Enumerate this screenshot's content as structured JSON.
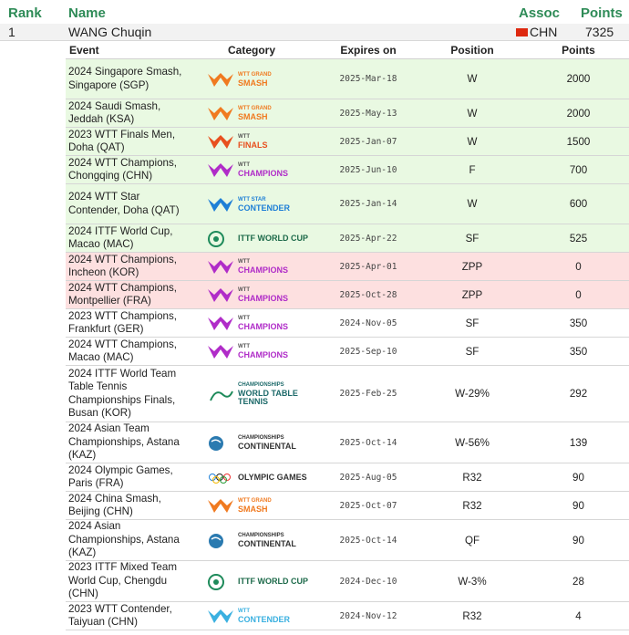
{
  "header": {
    "rank": "Rank",
    "name": "Name",
    "assoc": "Assoc",
    "points": "Points"
  },
  "player": {
    "rank": "1",
    "name": "WANG Chuqin",
    "assoc": "CHN",
    "points": "7325"
  },
  "columns": {
    "event": "Event",
    "category": "Category",
    "expires": "Expires on",
    "position": "Position",
    "points": "Points"
  },
  "colors": {
    "header_green": "#2e8b57",
    "row_green": "#e9f9e2",
    "row_red": "#fde0e0",
    "flag_red": "#de2910"
  },
  "rows": [
    {
      "event": "2024 Singapore Smash, Singapore (SGP)",
      "logo": "smash",
      "logo_icon": "wtt-smash-logo-icon",
      "logo_text": "SMASH",
      "logo_small": "WTT GRAND",
      "expires": "2025-Mar-18",
      "position": "W",
      "points": "2000",
      "status": "green"
    },
    {
      "event": "2024 Saudi Smash, Jeddah (KSA)",
      "logo": "smash",
      "logo_icon": "wtt-smash-logo-icon",
      "logo_text": "SMASH",
      "logo_small": "WTT GRAND",
      "expires": "2025-May-13",
      "position": "W",
      "points": "2000",
      "status": "green"
    },
    {
      "event": "2023 WTT Finals Men, Doha (QAT)",
      "logo": "finals",
      "logo_icon": "wtt-finals-logo-icon",
      "logo_text": "FINALS",
      "logo_small": "WTT",
      "expires": "2025-Jan-07",
      "position": "W",
      "points": "1500",
      "status": "green"
    },
    {
      "event": "2024 WTT Champions, Chongqing (CHN)",
      "logo": "champions",
      "logo_icon": "wtt-champions-logo-icon",
      "logo_text": "CHAMPIONS",
      "logo_small": "WTT",
      "expires": "2025-Jun-10",
      "position": "F",
      "points": "700",
      "status": "green"
    },
    {
      "event": "2024 WTT Star Contender, Doha (QAT)",
      "logo": "star",
      "logo_icon": "wtt-star-contender-logo-icon",
      "logo_text": "CONTENDER",
      "logo_small": "WTT STAR",
      "expires": "2025-Jan-14",
      "position": "W",
      "points": "600",
      "status": "green"
    },
    {
      "event": "2024 ITTF World Cup, Macao (MAC)",
      "logo": "worldcup",
      "logo_icon": "ittf-world-cup-logo-icon",
      "logo_text": "ITTF WORLD CUP",
      "logo_small": "",
      "expires": "2025-Apr-22",
      "position": "SF",
      "points": "525",
      "status": "green"
    },
    {
      "event": "2024 WTT Champions, Incheon (KOR)",
      "logo": "champions",
      "logo_icon": "wtt-champions-logo-icon",
      "logo_text": "CHAMPIONS",
      "logo_small": "WTT",
      "expires": "2025-Apr-01",
      "position": "ZPP",
      "points": "0",
      "status": "red"
    },
    {
      "event": "2024 WTT Champions, Montpellier (FRA)",
      "logo": "champions",
      "logo_icon": "wtt-champions-logo-icon",
      "logo_text": "CHAMPIONS",
      "logo_small": "WTT",
      "expires": "2025-Oct-28",
      "position": "ZPP",
      "points": "0",
      "status": "red"
    },
    {
      "event": "2023 WTT Champions, Frankfurt (GER)",
      "logo": "champions",
      "logo_icon": "wtt-champions-logo-icon",
      "logo_text": "CHAMPIONS",
      "logo_small": "WTT",
      "expires": "2024-Nov-05",
      "position": "SF",
      "points": "350",
      "status": "white"
    },
    {
      "event": "2024 WTT Champions, Macao (MAC)",
      "logo": "champions",
      "logo_icon": "wtt-champions-logo-icon",
      "logo_text": "CHAMPIONS",
      "logo_small": "WTT",
      "expires": "2025-Sep-10",
      "position": "SF",
      "points": "350",
      "status": "white"
    },
    {
      "event": "2024 ITTF World Team Table Tennis Championships Finals, Busan (KOR)",
      "logo": "wttc",
      "logo_icon": "world-table-tennis-championships-logo-icon",
      "logo_text": "WORLD TABLE TENNIS",
      "logo_small": "CHAMPIONSHIPS",
      "expires": "2025-Feb-25",
      "position": "W-29%",
      "points": "292",
      "status": "white"
    },
    {
      "event": "2024 Asian Team Championships, Astana (KAZ)",
      "logo": "continental",
      "logo_icon": "continental-championships-logo-icon",
      "logo_text": "CONTINENTAL",
      "logo_small": "CHAMPIONSHIPS",
      "expires": "2025-Oct-14",
      "position": "W-56%",
      "points": "139",
      "status": "white"
    },
    {
      "event": "2024 Olympic Games, Paris (FRA)",
      "logo": "olympic",
      "logo_icon": "olympic-rings-logo-icon",
      "logo_text": "OLYMPIC GAMES",
      "logo_small": "",
      "expires": "2025-Aug-05",
      "position": "R32",
      "points": "90",
      "status": "white"
    },
    {
      "event": "2024 China Smash, Beijing (CHN)",
      "logo": "smash",
      "logo_icon": "wtt-smash-logo-icon",
      "logo_text": "SMASH",
      "logo_small": "WTT GRAND",
      "expires": "2025-Oct-07",
      "position": "R32",
      "points": "90",
      "status": "white"
    },
    {
      "event": "2024 Asian Championships, Astana (KAZ)",
      "logo": "continental",
      "logo_icon": "continental-championships-logo-icon",
      "logo_text": "CONTINENTAL",
      "logo_small": "CHAMPIONSHIPS",
      "expires": "2025-Oct-14",
      "position": "QF",
      "points": "90",
      "status": "white"
    },
    {
      "event": "2023 ITTF Mixed Team World Cup, Chengdu (CHN)",
      "logo": "worldcup",
      "logo_icon": "ittf-world-cup-logo-icon",
      "logo_text": "ITTF WORLD CUP",
      "logo_small": "",
      "expires": "2024-Dec-10",
      "position": "W-3%",
      "points": "28",
      "status": "white"
    },
    {
      "event": "2023 WTT Contender, Taiyuan (CHN)",
      "logo": "contender",
      "logo_icon": "wtt-contender-logo-icon",
      "logo_text": "CONTENDER",
      "logo_small": "WTT",
      "expires": "2024-Nov-12",
      "position": "R32",
      "points": "4",
      "status": "white"
    }
  ]
}
